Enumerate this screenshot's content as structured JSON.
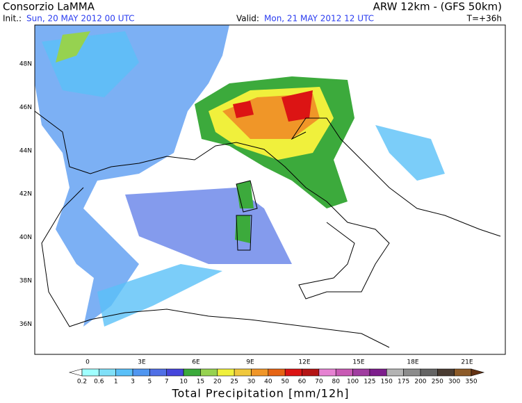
{
  "header": {
    "left_title": "Consorzio LaMMA",
    "right_title": "ARW 12km - (GFS 50km)",
    "init_label": "Init.:",
    "init_value": "Sun, 20 MAY 2012  00 UTC",
    "valid_label": "Valid:",
    "valid_value": "Mon, 21 MAY 2012  12 UTC",
    "lead_time": "T=+36h"
  },
  "map": {
    "lat_labels": [
      "48N",
      "46N",
      "44N",
      "42N",
      "40N",
      "38N",
      "36N"
    ],
    "lon_labels": [
      "0",
      "3E",
      "6E",
      "9E",
      "12E",
      "15E",
      "18E",
      "21E"
    ]
  },
  "colorbar": {
    "title": "Total Precipitation [mm/12h]",
    "labels": [
      "0.2",
      "0.6",
      "1",
      "3",
      "5",
      "7",
      "10",
      "15",
      "20",
      "25",
      "30",
      "40",
      "50",
      "60",
      "70",
      "80",
      "100",
      "125",
      "150",
      "175",
      "200",
      "250",
      "300",
      "350"
    ],
    "colors": [
      "#a0ffff",
      "#80e0f8",
      "#5ac0f8",
      "#5096f0",
      "#5070e6",
      "#4646dc",
      "#3caa3c",
      "#96d250",
      "#f0f03c",
      "#f0c83c",
      "#f09628",
      "#e66414",
      "#dc1414",
      "#b41414",
      "#e682d2",
      "#c85ab4",
      "#a03ca0",
      "#7d1e8c",
      "#b4b4b4",
      "#8c8c8c",
      "#646464",
      "#4a3c32",
      "#8c5a28"
    ],
    "under_color": "#ffffff",
    "over_color": "#643214"
  }
}
